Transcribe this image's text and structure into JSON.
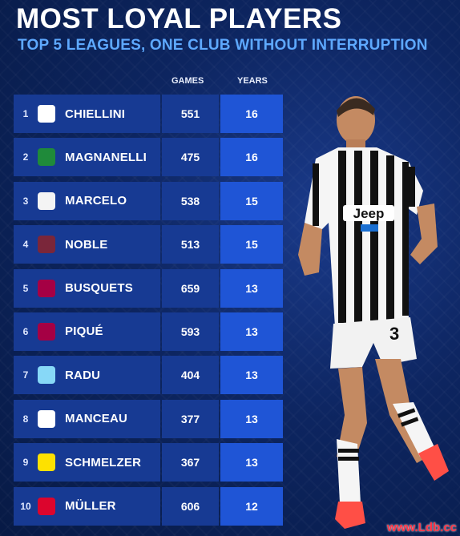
{
  "title": "MOST LOYAL PLAYERS",
  "subtitle": "TOP 5 LEAGUES, ONE CLUB WITHOUT INTERRUPTION",
  "columns": {
    "games": "GAMES",
    "years": "YEARS"
  },
  "rows": [
    {
      "rank": "1",
      "name": "CHIELLINI",
      "games": "551",
      "years": "16",
      "logo": "juventus-logo",
      "logo_bg": "#ffffff",
      "logo_fg": "#111111"
    },
    {
      "rank": "2",
      "name": "MAGNANELLI",
      "games": "475",
      "years": "16",
      "logo": "sassuolo-logo",
      "logo_bg": "#1f8a3a",
      "logo_fg": "#111111"
    },
    {
      "rank": "3",
      "name": "MARCELO",
      "games": "538",
      "years": "15",
      "logo": "real-madrid-logo",
      "logo_bg": "#f4f4f4",
      "logo_fg": "#d9a81e"
    },
    {
      "rank": "4",
      "name": "NOBLE",
      "games": "513",
      "years": "15",
      "logo": "west-ham-logo",
      "logo_bg": "#7a263a",
      "logo_fg": "#1bb1e7"
    },
    {
      "rank": "5",
      "name": "BUSQUETS",
      "games": "659",
      "years": "13",
      "logo": "barcelona-logo",
      "logo_bg": "#a50044",
      "logo_fg": "#edbb00"
    },
    {
      "rank": "6",
      "name": "PIQUÉ",
      "games": "593",
      "years": "13",
      "logo": "barcelona-logo",
      "logo_bg": "#a50044",
      "logo_fg": "#edbb00"
    },
    {
      "rank": "7",
      "name": "RADU",
      "games": "404",
      "years": "13",
      "logo": "lazio-logo",
      "logo_bg": "#87d8f7",
      "logo_fg": "#ffffff"
    },
    {
      "rank": "8",
      "name": "MANCEAU",
      "games": "377",
      "years": "13",
      "logo": "angers-logo",
      "logo_bg": "#ffffff",
      "logo_fg": "#111111"
    },
    {
      "rank": "9",
      "name": "SCHMELZER",
      "games": "367",
      "years": "13",
      "logo": "dortmund-logo",
      "logo_bg": "#fde100",
      "logo_fg": "#111111"
    },
    {
      "rank": "10",
      "name": "MÜLLER",
      "games": "606",
      "years": "12",
      "logo": "bayern-logo",
      "logo_bg": "#dc052d",
      "logo_fg": "#0066b2"
    }
  ],
  "watermark": "www.Ldb.cc",
  "colors": {
    "row": "#173a93",
    "years_cell": "#1f55d6",
    "subtitle": "#5ea9ff"
  }
}
